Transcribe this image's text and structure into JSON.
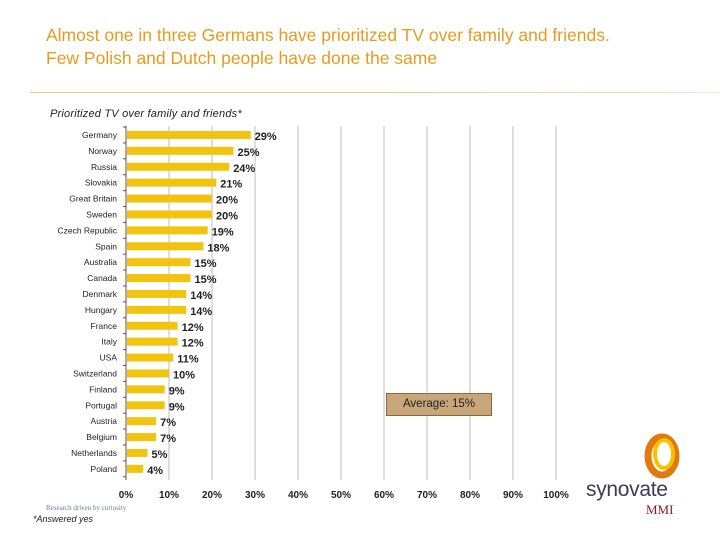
{
  "title_line1": "Almost one in three Germans have prioritized TV over family and friends.",
  "title_line2": "Few Polish and Dutch people have done the same",
  "footnote": "*Answered yes",
  "average_label": "Average: 15%",
  "tagline": "Research driven by curiosity",
  "logo": {
    "name": "synovate",
    "sub": "MMI"
  },
  "colors": {
    "bar": "#f2c40f",
    "title": "#e69b1f",
    "average_box": "#c9a57a"
  },
  "chart_data": {
    "type": "bar",
    "orientation": "horizontal",
    "title": "Prioritized TV over family and friends*",
    "categories": [
      "Germany",
      "Norway",
      "Russia",
      "Slovakia",
      "Great Britain",
      "Sweden",
      "Czech Republic",
      "Spain",
      "Australia",
      "Canada",
      "Denmark",
      "Hungary",
      "France",
      "Italy",
      "USA",
      "Switzerland",
      "Finland",
      "Portugal",
      "Austria",
      "Belgium",
      "Netherlands",
      "Poland"
    ],
    "values": [
      29,
      25,
      24,
      21,
      20,
      20,
      19,
      18,
      15,
      15,
      14,
      14,
      12,
      12,
      11,
      10,
      9,
      9,
      7,
      7,
      5,
      4
    ],
    "value_labels": [
      "29%",
      "25%",
      "24%",
      "21%",
      "20%",
      "20%",
      "19%",
      "18%",
      "15%",
      "15%",
      "14%",
      "14%",
      "12%",
      "12%",
      "11%",
      "10%",
      "9%",
      "9%",
      "7%",
      "7%",
      "5%",
      "4%"
    ],
    "xlim": [
      0,
      100
    ],
    "xticks": [
      "0%",
      "10%",
      "20%",
      "30%",
      "40%",
      "50%",
      "60%",
      "70%",
      "80%",
      "90%",
      "100%"
    ],
    "grid": true,
    "average": 15
  }
}
